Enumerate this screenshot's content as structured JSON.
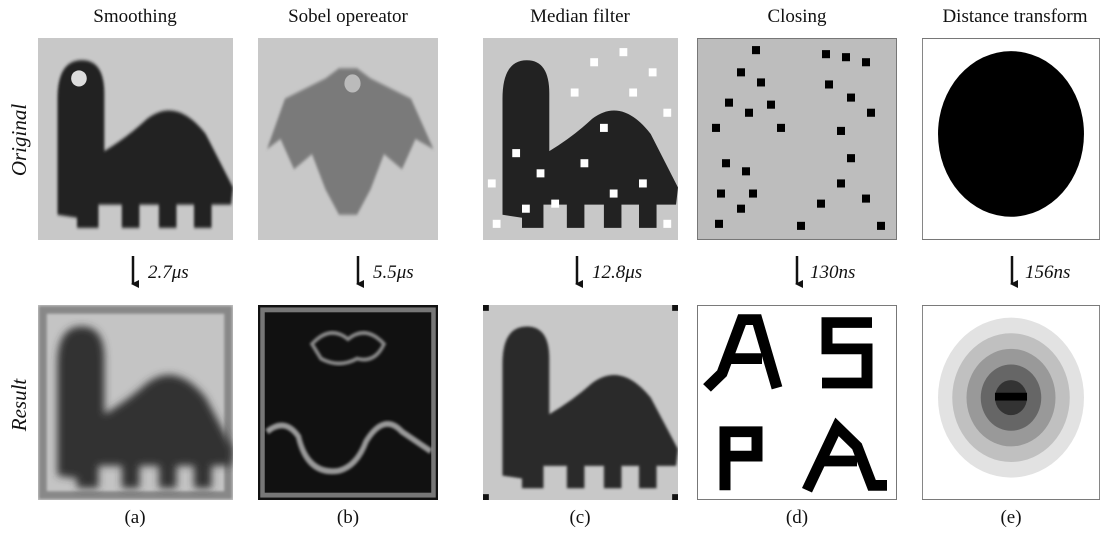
{
  "columns": [
    {
      "title": "Smoothing",
      "time": "2.7μs",
      "label": "(a)"
    },
    {
      "title": "Sobel opereator",
      "time": "5.5μs",
      "label": "(b)"
    },
    {
      "title": "Median filter",
      "time": "12.8μs",
      "label": "(c)"
    },
    {
      "title": "Closing",
      "time": "130ns",
      "label": "(d)"
    },
    {
      "title": "Distance transform",
      "time": "156ns",
      "label": "(e)"
    }
  ],
  "rows": [
    "Original",
    "Result"
  ]
}
